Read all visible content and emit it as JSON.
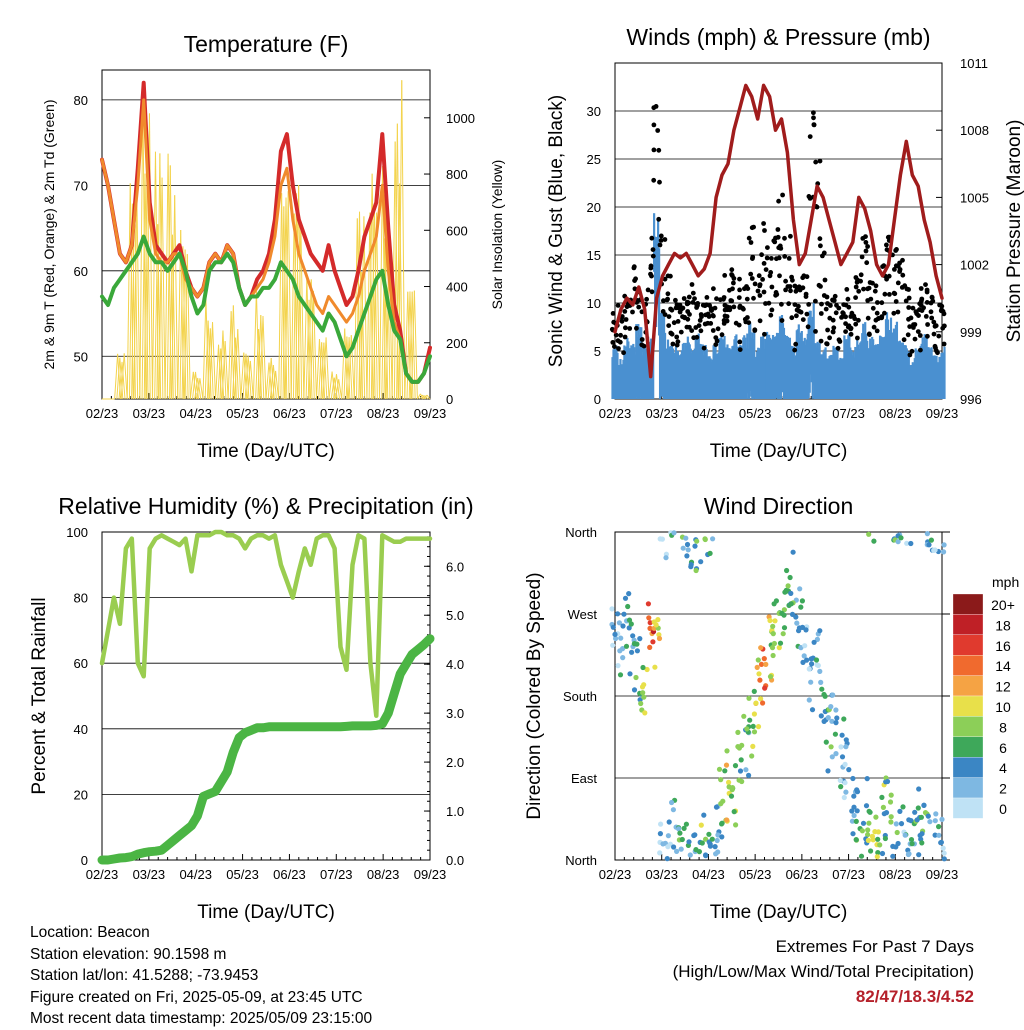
{
  "chart_data": [
    {
      "type": "line",
      "title": "Temperature (F)",
      "xlabel": "Time (Day/UTC)",
      "ylabel": "2m & 9m T (Red, Orange) & 2m Td (Green)",
      "ylabel_right": "Solar Insolation (Yellow)",
      "ylim": [
        45,
        83.5
      ],
      "ylim_right": [
        0,
        1170
      ],
      "yticks": [
        50,
        60,
        70,
        80
      ],
      "yticks_right": [
        0,
        200,
        400,
        600,
        800,
        1000
      ],
      "x_ticklabels": [
        "02/23",
        "03/23",
        "04/23",
        "05/23",
        "06/23",
        "07/23",
        "08/23",
        "09/23"
      ],
      "grid": true,
      "series": [
        {
          "name": "2m T",
          "color": "#d42a2a",
          "values": [
            73,
            70,
            66,
            62,
            61,
            63,
            72,
            82,
            68,
            63,
            62,
            61,
            62,
            63,
            60,
            58,
            57,
            58,
            61,
            62,
            61,
            63,
            62,
            58,
            56,
            57,
            59,
            60,
            62,
            66,
            74,
            76,
            70,
            66,
            64,
            62,
            61,
            60,
            63,
            60,
            58,
            56,
            57,
            60,
            64,
            66,
            68,
            76,
            65,
            56,
            53,
            48,
            47,
            47,
            48,
            51
          ]
        },
        {
          "name": "9m T",
          "color": "#f08a2c",
          "values": [
            73,
            70,
            66,
            62,
            61,
            63,
            70,
            80,
            66,
            62,
            61,
            61,
            62,
            62,
            59,
            58,
            57,
            58,
            61,
            62,
            61,
            63,
            62,
            58,
            56,
            57,
            58,
            59,
            61,
            64,
            70,
            72,
            66,
            62,
            60,
            58,
            56,
            55,
            57,
            56,
            55,
            54,
            55,
            57,
            60,
            62,
            64,
            70,
            60,
            54,
            52,
            48,
            47,
            47,
            48,
            50
          ]
        },
        {
          "name": "2m Td",
          "color": "#3aa83a",
          "values": [
            57,
            56,
            58,
            59,
            60,
            61,
            62,
            64,
            62,
            61,
            61,
            60,
            61,
            62,
            60,
            57,
            55,
            56,
            60,
            61,
            61,
            62,
            61,
            58,
            56,
            57,
            57,
            58,
            58,
            59,
            61,
            60,
            59,
            57,
            56,
            55,
            54,
            53,
            55,
            54,
            52,
            50,
            51,
            53,
            55,
            57,
            59,
            60,
            56,
            53,
            52,
            48,
            47,
            47,
            48,
            50
          ]
        },
        {
          "name": "Solar",
          "color": "#f3d34c",
          "peaks": [
            0,
            180,
            850,
            1150,
            1000,
            900,
            620,
            100,
            380,
            250,
            350,
            200,
            400,
            150,
            960,
            900,
            450,
            250,
            100,
            300,
            700,
            1050,
            830,
            1170,
            400,
            20
          ]
        }
      ]
    },
    {
      "type": "line",
      "title": "Winds (mph) & Pressure (mb)",
      "xlabel": "Time (Day/UTC)",
      "ylabel": "Sonic Wind & Gust (Blue, Black)",
      "ylabel_right": "Station Pressure (Maroon)",
      "ylim": [
        0,
        35
      ],
      "ylim_right": [
        996,
        1011
      ],
      "yticks": [
        0,
        5,
        10,
        15,
        20,
        25,
        30
      ],
      "yticks_right": [
        996,
        999,
        1002,
        1005,
        1008,
        1011
      ],
      "x_ticklabels": [
        "02/23",
        "03/23",
        "04/23",
        "05/23",
        "06/23",
        "07/23",
        "08/23",
        "09/23"
      ],
      "grid": true,
      "series": [
        {
          "name": "Pressure",
          "color": "#a01c1c",
          "values": [
            999,
            1000,
            1000.5,
            1000.2,
            1001,
            1000,
            997,
            1000.5,
            1001.5,
            1002,
            1002.5,
            1002.3,
            1002.5,
            1002,
            1001.5,
            1001.8,
            1002.5,
            1005,
            1006,
            1006.5,
            1008,
            1009,
            1010,
            1009.5,
            1008.5,
            1010,
            1009.5,
            1008,
            1008.5,
            1007,
            1004,
            1002,
            1002.5,
            1004,
            1005.5,
            1005,
            1004,
            1003,
            1002,
            1002.5,
            1003,
            1005,
            1004.5,
            1003.5,
            1002,
            1001.5,
            1002,
            1004,
            1006,
            1007.5,
            1006,
            1005.5,
            1004,
            1003,
            1001.5,
            1000.5
          ]
        },
        {
          "name": "Wind",
          "color": "#4a90d0",
          "values": [
            5,
            4,
            6,
            5,
            7,
            5,
            6,
            18,
            8,
            6,
            5,
            5,
            6,
            5,
            6,
            5,
            4,
            5,
            6,
            5,
            6,
            5,
            6,
            7,
            5,
            6,
            7,
            6,
            8,
            6,
            5,
            7,
            6,
            9,
            6,
            5,
            4,
            5,
            4,
            6,
            5,
            6,
            7,
            6,
            5,
            6,
            8,
            7,
            6,
            5,
            4,
            5,
            6,
            5,
            4,
            5
          ]
        },
        {
          "name": "Gust",
          "color": "#000000",
          "values": [
            9,
            10,
            11,
            15,
            12,
            11,
            17,
            32,
            20,
            13,
            11,
            10,
            11,
            12,
            10,
            11,
            10,
            12,
            13,
            12,
            14,
            13,
            12,
            18,
            14,
            19,
            16,
            18,
            22,
            17,
            14,
            12,
            13,
            31,
            25,
            18,
            12,
            11,
            10,
            12,
            11,
            14,
            17,
            13,
            12,
            14,
            18,
            16,
            15,
            12,
            10,
            11,
            12,
            11,
            9,
            10
          ]
        }
      ]
    },
    {
      "type": "line",
      "title": "Relative Humidity (%) & Precipitation (in)",
      "xlabel": "Time (Day/UTC)",
      "ylabel": "Percent & Total Rainfall",
      "ylim": [
        0,
        100
      ],
      "ylim_right": [
        0,
        6.7
      ],
      "yticks": [
        0,
        20,
        40,
        60,
        80,
        100
      ],
      "yticks_right": [
        "0.0",
        "1.0",
        "2.0",
        "3.0",
        "4.0",
        "5.0",
        "6.0"
      ],
      "x_ticklabels": [
        "02/23",
        "03/23",
        "04/23",
        "05/23",
        "06/23",
        "07/23",
        "08/23",
        "09/23"
      ],
      "grid": true,
      "series": [
        {
          "name": "RH",
          "color": "#9acd50",
          "values": [
            60,
            70,
            80,
            72,
            95,
            98,
            60,
            56,
            95,
            98,
            99,
            98,
            97,
            96,
            98,
            88,
            99,
            99,
            99,
            100,
            100,
            99,
            99,
            98,
            95,
            98,
            99,
            99,
            98,
            99,
            90,
            85,
            80,
            88,
            95,
            90,
            98,
            99,
            99,
            95,
            65,
            58,
            90,
            99,
            98,
            60,
            44,
            99,
            98,
            97,
            97,
            98,
            98,
            98,
            98,
            98
          ]
        },
        {
          "name": "Precip",
          "color": "#4bb544",
          "values": [
            0,
            0,
            0.02,
            0.04,
            0.05,
            0.07,
            0.12,
            0.15,
            0.17,
            0.18,
            0.2,
            0.3,
            0.4,
            0.5,
            0.6,
            0.7,
            0.9,
            1.3,
            1.35,
            1.4,
            1.6,
            1.8,
            2.2,
            2.5,
            2.6,
            2.65,
            2.7,
            2.7,
            2.72,
            2.72,
            2.72,
            2.72,
            2.72,
            2.72,
            2.72,
            2.72,
            2.72,
            2.72,
            2.72,
            2.72,
            2.72,
            2.73,
            2.74,
            2.74,
            2.74,
            2.74,
            2.75,
            2.78,
            3.0,
            3.4,
            3.8,
            4.0,
            4.2,
            4.3,
            4.4,
            4.52
          ]
        }
      ]
    },
    {
      "type": "scatter",
      "title": "Wind Direction",
      "xlabel": "Time (Day/UTC)",
      "ylabel": "Direction (Colored By Speed)",
      "ylim": [
        0,
        360
      ],
      "yticks": [
        "North",
        "East",
        "South",
        "West",
        "North"
      ],
      "x_ticklabels": [
        "02/23",
        "03/23",
        "04/23",
        "05/23",
        "06/23",
        "07/23",
        "08/23",
        "09/23"
      ],
      "grid": true,
      "legend_title": "mph",
      "legend_labels": [
        "20+",
        "18",
        "16",
        "14",
        "12",
        "10",
        "8",
        "6",
        "4",
        "2",
        "0"
      ],
      "legend_colors": [
        "#8b1a1a",
        "#bf2026",
        "#e03a2e",
        "#f06a2e",
        "#f5a344",
        "#e8e04a",
        "#8ccf58",
        "#3ea85a",
        "#3b86c4",
        "#7eb8e2",
        "#bfe2f5"
      ],
      "legend_position": "right"
    }
  ],
  "info": {
    "location": "Location: Beacon",
    "elevation": "Station elevation: 90.1598 m",
    "latlon": "Station lat/lon: 41.5288; -73.9453",
    "created": "Figure created on Fri, 2025-05-09, at 23:45 UTC",
    "recent": "Most recent data timestamp: 2025/05/09 23:15:00"
  },
  "extremes": {
    "line1": "Extremes For Past 7 Days",
    "line2": "(High/Low/Max Wind/Total Precipitation)",
    "values": "82/47/18.3/4.52"
  }
}
